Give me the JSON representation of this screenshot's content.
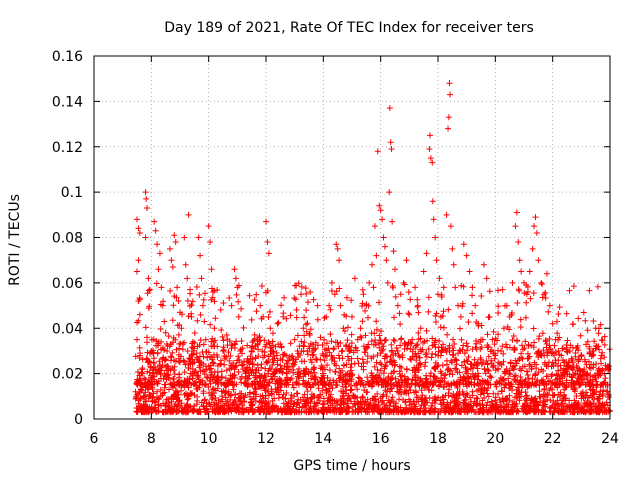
{
  "chart_data": {
    "type": "scatter",
    "title": "Day 189 of 2021, Rate Of TEC Index for receiver ters",
    "xlabel": "GPS time / hours",
    "ylabel": "ROTI / TECUs",
    "xlim": [
      6,
      24
    ],
    "ylim": [
      0,
      0.16
    ],
    "xticks": [
      "6",
      "8",
      "10",
      "12",
      "14",
      "16",
      "18",
      "20",
      "22",
      "24"
    ],
    "yticks": [
      "0",
      "0.02",
      "0.04",
      "0.06",
      "0.08",
      "0.1",
      "0.12",
      "0.14",
      "0.16"
    ],
    "grid": true,
    "marker": "+",
    "marker_color": "#ff0000",
    "points": [
      [
        7.45,
        0.012
      ],
      [
        7.5,
        0.088
      ],
      [
        7.55,
        0.084
      ],
      [
        7.6,
        0.082
      ],
      [
        7.55,
        0.07
      ],
      [
        7.5,
        0.065
      ],
      [
        7.55,
        0.052
      ],
      [
        7.6,
        0.046
      ],
      [
        7.5,
        0.035
      ],
      [
        7.6,
        0.028
      ],
      [
        7.7,
        0.02
      ],
      [
        7.75,
        0.01
      ],
      [
        7.8,
        0.1
      ],
      [
        7.82,
        0.097
      ],
      [
        7.85,
        0.093
      ],
      [
        7.8,
        0.08
      ],
      [
        7.9,
        0.062
      ],
      [
        7.95,
        0.057
      ],
      [
        7.85,
        0.036
      ],
      [
        7.9,
        0.025
      ],
      [
        8.0,
        0.018
      ],
      [
        8.05,
        0.008
      ],
      [
        8.1,
        0.087
      ],
      [
        8.15,
        0.083
      ],
      [
        8.2,
        0.077
      ],
      [
        8.3,
        0.073
      ],
      [
        8.25,
        0.066
      ],
      [
        8.35,
        0.058
      ],
      [
        8.4,
        0.05
      ],
      [
        8.45,
        0.043
      ],
      [
        8.5,
        0.038
      ],
      [
        8.55,
        0.03
      ],
      [
        8.6,
        0.022
      ],
      [
        8.65,
        0.075
      ],
      [
        8.7,
        0.07
      ],
      [
        8.75,
        0.067
      ],
      [
        8.8,
        0.081
      ],
      [
        8.85,
        0.078
      ],
      [
        8.9,
        0.058
      ],
      [
        8.95,
        0.052
      ],
      [
        9.0,
        0.047
      ],
      [
        9.05,
        0.04
      ],
      [
        9.1,
        0.033
      ],
      [
        9.15,
        0.08
      ],
      [
        9.2,
        0.068
      ],
      [
        9.25,
        0.062
      ],
      [
        9.3,
        0.09
      ],
      [
        9.35,
        0.057
      ],
      [
        9.4,
        0.045
      ],
      [
        9.45,
        0.034
      ],
      [
        9.5,
        0.025
      ],
      [
        9.55,
        0.016
      ],
      [
        9.6,
        0.008
      ],
      [
        9.65,
        0.08
      ],
      [
        9.7,
        0.072
      ],
      [
        9.75,
        0.062
      ],
      [
        9.8,
        0.05
      ],
      [
        9.85,
        0.043
      ],
      [
        9.9,
        0.035
      ],
      [
        9.95,
        0.027
      ],
      [
        10.0,
        0.085
      ],
      [
        10.05,
        0.078
      ],
      [
        10.1,
        0.066
      ],
      [
        10.15,
        0.056
      ],
      [
        10.2,
        0.04
      ],
      [
        10.3,
        0.032
      ],
      [
        10.4,
        0.024
      ],
      [
        10.5,
        0.03
      ],
      [
        10.6,
        0.018
      ],
      [
        10.7,
        0.012
      ],
      [
        10.8,
        0.05
      ],
      [
        10.9,
        0.066
      ],
      [
        10.95,
        0.062
      ],
      [
        11.0,
        0.058
      ],
      [
        11.05,
        0.045
      ],
      [
        11.1,
        0.03
      ],
      [
        11.2,
        0.022
      ],
      [
        11.3,
        0.018
      ],
      [
        11.4,
        0.025
      ],
      [
        11.5,
        0.03
      ],
      [
        11.6,
        0.015
      ],
      [
        11.7,
        0.035
      ],
      [
        11.8,
        0.05
      ],
      [
        11.9,
        0.045
      ],
      [
        11.95,
        0.028
      ],
      [
        12.0,
        0.087
      ],
      [
        12.05,
        0.078
      ],
      [
        12.1,
        0.073
      ],
      [
        12.15,
        0.04
      ],
      [
        12.2,
        0.03
      ],
      [
        12.3,
        0.02
      ],
      [
        12.4,
        0.042
      ],
      [
        12.5,
        0.033
      ],
      [
        12.6,
        0.045
      ],
      [
        12.7,
        0.028
      ],
      [
        12.8,
        0.022
      ],
      [
        12.9,
        0.018
      ],
      [
        13.0,
        0.035
      ],
      [
        13.1,
        0.03
      ],
      [
        13.2,
        0.02
      ],
      [
        13.3,
        0.04
      ],
      [
        13.4,
        0.048
      ],
      [
        13.5,
        0.032
      ],
      [
        13.6,
        0.025
      ],
      [
        13.7,
        0.018
      ],
      [
        13.8,
        0.05
      ],
      [
        13.9,
        0.036
      ],
      [
        14.0,
        0.028
      ],
      [
        14.1,
        0.045
      ],
      [
        14.2,
        0.05
      ],
      [
        14.3,
        0.06
      ],
      [
        14.4,
        0.055
      ],
      [
        14.45,
        0.077
      ],
      [
        14.5,
        0.075
      ],
      [
        14.55,
        0.07
      ],
      [
        14.6,
        0.05
      ],
      [
        14.7,
        0.04
      ],
      [
        14.8,
        0.032
      ],
      [
        14.9,
        0.03
      ],
      [
        15.0,
        0.045
      ],
      [
        15.1,
        0.062
      ],
      [
        15.2,
        0.035
      ],
      [
        15.3,
        0.04
      ],
      [
        15.4,
        0.055
      ],
      [
        15.5,
        0.05
      ],
      [
        15.6,
        0.06
      ],
      [
        15.7,
        0.068
      ],
      [
        15.75,
        0.058
      ],
      [
        15.8,
        0.085
      ],
      [
        15.85,
        0.072
      ],
      [
        15.9,
        0.118
      ],
      [
        15.95,
        0.094
      ],
      [
        16.0,
        0.092
      ],
      [
        16.05,
        0.088
      ],
      [
        16.1,
        0.08
      ],
      [
        16.15,
        0.076
      ],
      [
        16.2,
        0.07
      ],
      [
        16.25,
        0.06
      ],
      [
        16.3,
        0.1
      ],
      [
        16.32,
        0.137
      ],
      [
        16.35,
        0.122
      ],
      [
        16.38,
        0.119
      ],
      [
        16.4,
        0.087
      ],
      [
        16.45,
        0.074
      ],
      [
        16.5,
        0.066
      ],
      [
        16.6,
        0.05
      ],
      [
        16.7,
        0.055
      ],
      [
        16.8,
        0.06
      ],
      [
        16.9,
        0.07
      ],
      [
        17.0,
        0.046
      ],
      [
        17.1,
        0.035
      ],
      [
        17.2,
        0.058
      ],
      [
        17.3,
        0.05
      ],
      [
        17.4,
        0.04
      ],
      [
        17.5,
        0.065
      ],
      [
        17.6,
        0.073
      ],
      [
        17.7,
        0.119
      ],
      [
        17.72,
        0.125
      ],
      [
        17.75,
        0.115
      ],
      [
        17.8,
        0.113
      ],
      [
        17.82,
        0.096
      ],
      [
        17.85,
        0.088
      ],
      [
        17.9,
        0.08
      ],
      [
        17.95,
        0.07
      ],
      [
        18.0,
        0.055
      ],
      [
        18.05,
        0.062
      ],
      [
        18.1,
        0.045
      ],
      [
        18.2,
        0.058
      ],
      [
        18.3,
        0.09
      ],
      [
        18.35,
        0.128
      ],
      [
        18.38,
        0.133
      ],
      [
        18.4,
        0.148
      ],
      [
        18.42,
        0.143
      ],
      [
        18.45,
        0.085
      ],
      [
        18.5,
        0.075
      ],
      [
        18.55,
        0.068
      ],
      [
        18.6,
        0.058
      ],
      [
        18.7,
        0.05
      ],
      [
        18.8,
        0.045
      ],
      [
        18.9,
        0.077
      ],
      [
        19.0,
        0.072
      ],
      [
        19.1,
        0.065
      ],
      [
        19.2,
        0.058
      ],
      [
        19.3,
        0.05
      ],
      [
        19.4,
        0.042
      ],
      [
        19.5,
        0.035
      ],
      [
        19.6,
        0.068
      ],
      [
        19.7,
        0.062
      ],
      [
        19.8,
        0.045
      ],
      [
        19.9,
        0.035
      ],
      [
        20.0,
        0.028
      ],
      [
        20.1,
        0.022
      ],
      [
        20.2,
        0.03
      ],
      [
        20.3,
        0.04
      ],
      [
        20.4,
        0.05
      ],
      [
        20.5,
        0.045
      ],
      [
        20.6,
        0.06
      ],
      [
        20.7,
        0.085
      ],
      [
        20.75,
        0.091
      ],
      [
        20.8,
        0.078
      ],
      [
        20.85,
        0.07
      ],
      [
        20.9,
        0.065
      ],
      [
        21.0,
        0.06
      ],
      [
        21.1,
        0.055
      ],
      [
        21.2,
        0.065
      ],
      [
        21.3,
        0.075
      ],
      [
        21.35,
        0.085
      ],
      [
        21.4,
        0.089
      ],
      [
        21.45,
        0.082
      ],
      [
        21.5,
        0.07
      ],
      [
        21.6,
        0.06
      ],
      [
        21.7,
        0.055
      ],
      [
        21.8,
        0.064
      ],
      [
        21.9,
        0.05
      ],
      [
        22.0,
        0.042
      ],
      [
        22.1,
        0.035
      ],
      [
        22.2,
        0.03
      ],
      [
        22.3,
        0.028
      ],
      [
        22.4,
        0.025
      ],
      [
        22.5,
        0.022
      ],
      [
        22.6,
        0.03
      ],
      [
        22.7,
        0.025
      ],
      [
        22.8,
        0.02
      ],
      [
        22.9,
        0.018
      ],
      [
        23.0,
        0.028
      ],
      [
        23.1,
        0.022
      ],
      [
        23.2,
        0.018
      ],
      [
        23.3,
        0.015
      ],
      [
        23.4,
        0.03
      ],
      [
        23.5,
        0.04
      ],
      [
        23.6,
        0.032
      ],
      [
        23.7,
        0.028
      ],
      [
        23.8,
        0.02
      ],
      [
        23.9,
        0.015
      ],
      [
        23.95,
        0.022
      ],
      [
        8.2,
        0.012
      ],
      [
        9.3,
        0.005
      ],
      [
        10.5,
        0.006
      ],
      [
        11.8,
        0.01
      ],
      [
        12.9,
        0.008
      ],
      [
        14.2,
        0.012
      ],
      [
        15.1,
        0.009
      ],
      [
        16.7,
        0.014
      ],
      [
        17.5,
        0.006
      ],
      [
        19.2,
        0.012
      ],
      [
        20.3,
        0.008
      ],
      [
        21.8,
        0.011
      ],
      [
        22.9,
        0.007
      ],
      [
        23.6,
        0.009
      ]
    ],
    "background_noise": {
      "x_range": [
        7.45,
        24
      ],
      "baseline": 0.012,
      "spread": 0.02
    }
  }
}
